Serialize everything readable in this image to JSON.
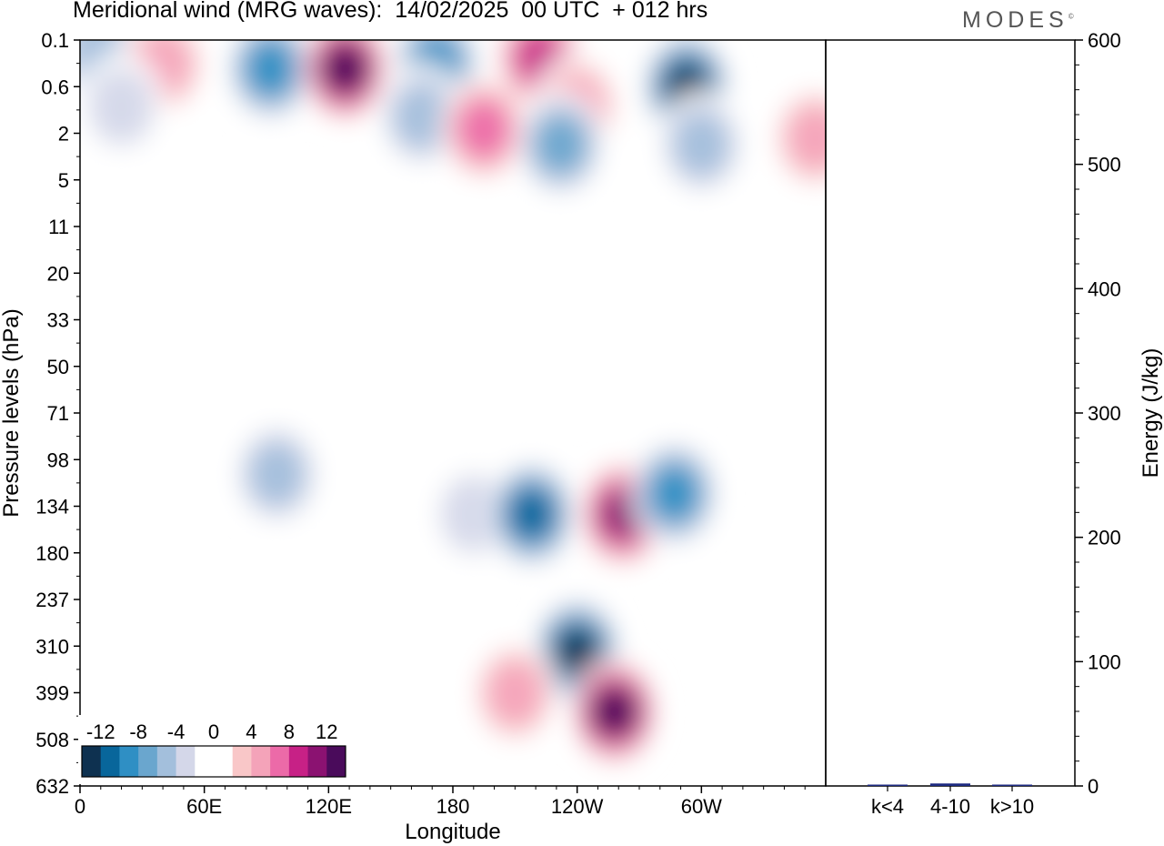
{
  "title": "Meridional wind (MRG waves):  14/02/2025  00 UTC  + 012 hrs",
  "logo_text": "MODES",
  "logo_mark": "©",
  "chart_data": [
    {
      "type": "heatmap",
      "xlabel": "Longitude",
      "ylabel": "Pressure levels (hPa)",
      "x_ticks": [
        "0",
        "60E",
        "120E",
        "180",
        "120W",
        "60W"
      ],
      "x_tick_values": [
        0,
        60,
        120,
        180,
        240,
        300
      ],
      "xlim": [
        0,
        360
      ],
      "y_ticks": [
        "0.1",
        "0.6",
        "2",
        "5",
        "11",
        "20",
        "33",
        "50",
        "71",
        "98",
        "134",
        "180",
        "237",
        "310",
        "399",
        "508",
        "632"
      ],
      "colorbar": {
        "labels": [
          "-12",
          "-8",
          "-4",
          "0",
          "4",
          "8",
          "12"
        ],
        "label_values": [
          -12,
          -8,
          -4,
          0,
          4,
          8,
          12
        ],
        "colors": [
          "#0e3150",
          "#08669b",
          "#2f8fc4",
          "#6aa6ce",
          "#a3bfdc",
          "#d4d7e9",
          "#ffffff",
          "#ffffff",
          "#f9c7c8",
          "#f4a3b9",
          "#ec6aa8",
          "#c72186",
          "#8b1271",
          "#4a0b5b"
        ],
        "range": [
          -14,
          14
        ],
        "step": 2
      },
      "features": [
        {
          "lon": 8,
          "level": 0.15,
          "value": -6
        },
        {
          "lon": 40,
          "level": 0.25,
          "value": 6
        },
        {
          "lon": 92,
          "level": 0.3,
          "value": -10
        },
        {
          "lon": 128,
          "level": 0.3,
          "value": 14
        },
        {
          "lon": 172,
          "level": 0.25,
          "value": -10
        },
        {
          "lon": 222,
          "level": 0.2,
          "value": 10
        },
        {
          "lon": 293,
          "level": 0.6,
          "value": -14
        },
        {
          "lon": 20,
          "level": 1.0,
          "value": -4
        },
        {
          "lon": 165,
          "level": 1.3,
          "value": -6
        },
        {
          "lon": 195,
          "level": 1.8,
          "value": 8
        },
        {
          "lon": 240,
          "level": 1.0,
          "value": 6
        },
        {
          "lon": 232,
          "level": 2.5,
          "value": -8
        },
        {
          "lon": 300,
          "level": 2.5,
          "value": -6
        },
        {
          "lon": 355,
          "level": 2.2,
          "value": 6
        },
        {
          "lon": 95,
          "level": 108,
          "value": -6
        },
        {
          "lon": 190,
          "level": 141,
          "value": -4
        },
        {
          "lon": 218,
          "level": 141,
          "value": -12
        },
        {
          "lon": 262,
          "level": 141,
          "value": 12
        },
        {
          "lon": 287,
          "level": 123,
          "value": -10
        },
        {
          "lon": 240,
          "level": 320,
          "value": -14
        },
        {
          "lon": 258,
          "level": 440,
          "value": 14
        },
        {
          "lon": 210,
          "level": 400,
          "value": 6
        }
      ]
    },
    {
      "type": "bar",
      "categories": [
        "k<4",
        "4-10",
        "k>10"
      ],
      "values": [
        0,
        2,
        0
      ],
      "ylabel": "Energy (J/kg)",
      "ylim": [
        0,
        600
      ],
      "y_ticks": [
        0,
        100,
        200,
        300,
        400,
        500,
        600
      ],
      "bar_color": "#1d2a80"
    }
  ]
}
